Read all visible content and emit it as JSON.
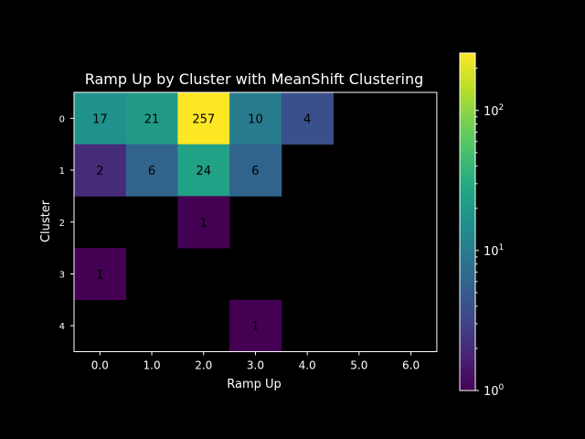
{
  "chart_data": {
    "type": "heatmap",
    "title": "Ramp Up by Cluster with MeanShift Clustering",
    "xlabel": "Ramp Up",
    "ylabel": "Cluster",
    "x_ticks": [
      "0.0",
      "1.0",
      "2.0",
      "3.0",
      "4.0",
      "5.0",
      "6.0"
    ],
    "y_ticks": [
      "0",
      "1",
      "2",
      "3",
      "4"
    ],
    "matrix": [
      [
        17,
        21,
        257,
        10,
        4,
        null,
        null
      ],
      [
        2,
        6,
        24,
        6,
        null,
        null,
        null
      ],
      [
        null,
        null,
        1,
        null,
        null,
        null,
        null
      ],
      [
        1,
        null,
        null,
        null,
        null,
        null,
        null
      ],
      [
        null,
        null,
        null,
        1,
        null,
        null,
        null
      ]
    ],
    "colormap": "viridis",
    "color_scale": "log",
    "clim": [
      1,
      257
    ],
    "colorbar_ticks": [
      {
        "value": 1,
        "base": "10",
        "exp": "0"
      },
      {
        "value": 10,
        "base": "10",
        "exp": "1"
      },
      {
        "value": 100,
        "base": "10",
        "exp": "2"
      }
    ],
    "background": "#000000",
    "text_color": "#ffffff",
    "annotation_color": "#000000"
  }
}
